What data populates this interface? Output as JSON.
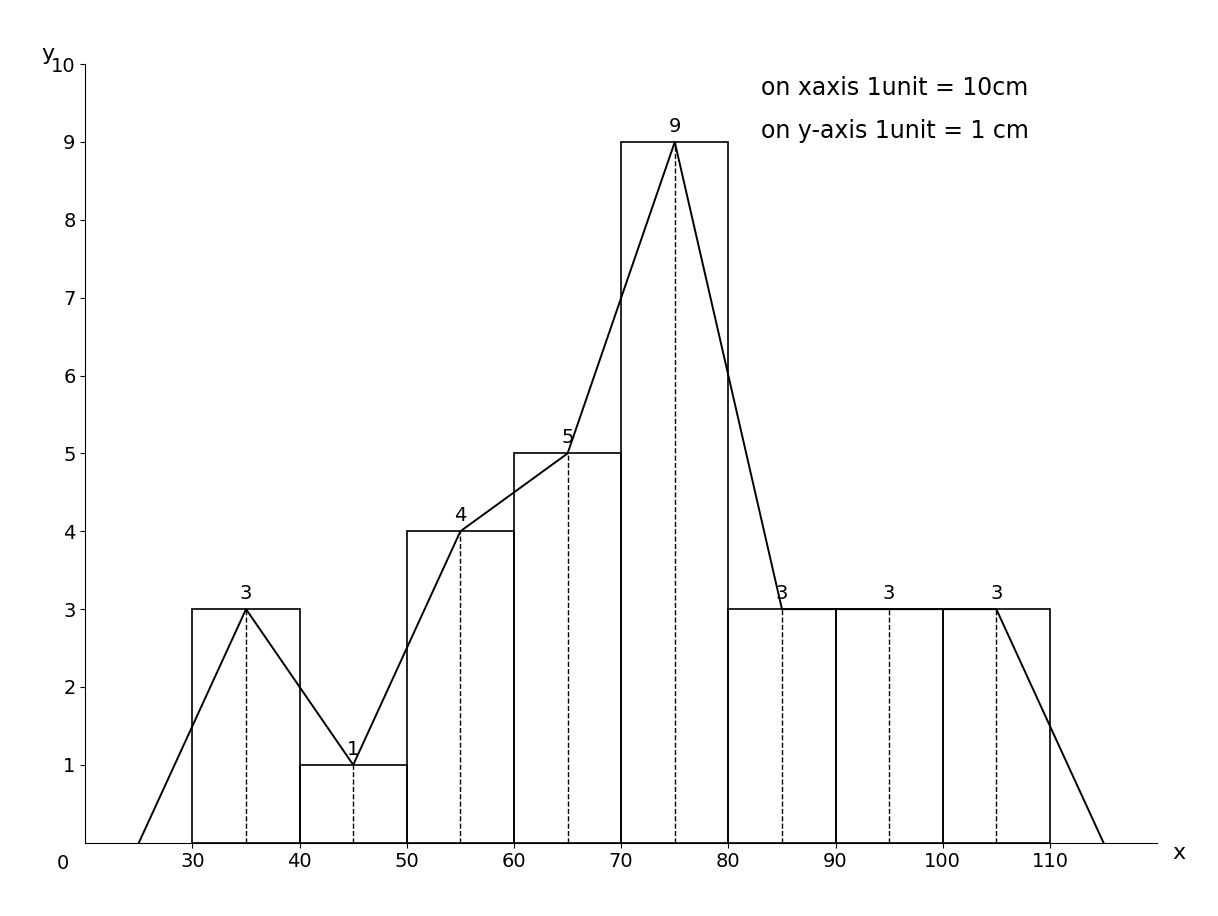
{
  "chart_data": {
    "type": "histogram",
    "bins": [
      30,
      40,
      50,
      60,
      70,
      80,
      90,
      100,
      110
    ],
    "counts": [
      3,
      1,
      4,
      5,
      9,
      3,
      3,
      3
    ],
    "polygon": {
      "x": [
        25,
        35,
        45,
        55,
        65,
        75,
        85,
        95,
        105,
        115
      ],
      "values": [
        0,
        3,
        1,
        4,
        5,
        9,
        3,
        3,
        3,
        0
      ]
    },
    "color": "#000000",
    "data_labels": true,
    "xlim": [
      20,
      120
    ],
    "ylim": [
      0,
      10
    ],
    "xticks": [
      30,
      40,
      50,
      60,
      70,
      80,
      90,
      100,
      110
    ],
    "yticks": [
      1,
      2,
      3,
      4,
      5,
      6,
      7,
      8,
      9,
      10
    ],
    "origin_label": "0",
    "x_label": "x",
    "y_label": "y",
    "annotations": [
      "on xaxis 1unit = 10cm",
      "on y-axis 1unit = 1 cm"
    ],
    "grid": false
  }
}
